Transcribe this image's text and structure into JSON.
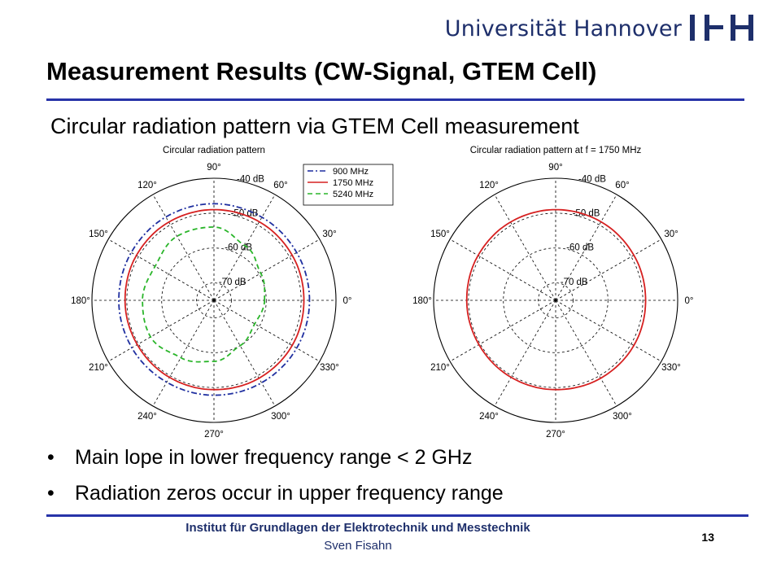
{
  "header": {
    "university": "Universität Hannover",
    "logo_icon": "ifh-logo-icon",
    "logo_color": "#1e2f6b"
  },
  "slide": {
    "title": "Measurement Results (CW-Signal, GTEM Cell)",
    "subtitle": "Circular radiation pattern via GTEM Cell measurement",
    "rule_color": "#2733a8",
    "bullets": [
      "Main lope in lower frequency range < 2 GHz",
      "Radiation zeros occur in upper frequency range"
    ]
  },
  "footer": {
    "institute": "Institut für Grundlagen der Elektrotechnik und Messtechnik",
    "author": "Sven Fisahn",
    "page": "13"
  },
  "chart_data": [
    {
      "type": "polar-line",
      "title": "Circular radiation pattern",
      "angle_labels": [
        "0°",
        "30°",
        "60°",
        "90°",
        "120°",
        "150°",
        "180°",
        "210°",
        "240°",
        "270°",
        "300°",
        "330°"
      ],
      "radial_labels": [
        "-70 dB",
        "-60 dB",
        "-50 dB",
        "-40 dB"
      ],
      "radial_range": [
        -75,
        -40
      ],
      "legend_position": "top-right",
      "series": [
        {
          "name": "900 MHz",
          "color": "#1f2fa0",
          "style": "dashdot",
          "values": [
            -47.6,
            -47.6,
            -47.5,
            -47.3,
            -47.4,
            -47.6,
            -47.7,
            -47.8,
            -47.9,
            -47.8,
            -47.7,
            -47.6,
            -47.6
          ]
        },
        {
          "name": "1750 MHz",
          "color": "#d62020",
          "style": "solid",
          "values": [
            -49.2,
            -49.1,
            -49.0,
            -49.0,
            -49.1,
            -49.3,
            -49.5,
            -49.6,
            -49.5,
            -49.4,
            -49.2,
            -49.1,
            -49.2
          ]
        },
        {
          "name": "5240 MHz",
          "color": "#2ab52a",
          "style": "dashed",
          "values": [
            -60.5,
            -59.5,
            -57.0,
            -54.0,
            -53.8,
            -55.5,
            -54.5,
            -54.0,
            -56.0,
            -57.5,
            -60.0,
            -61.5,
            -60.5
          ]
        }
      ]
    },
    {
      "type": "polar-line",
      "title": "Circular radiation pattern at f = 1750 MHz",
      "angle_labels": [
        "0°",
        "30°",
        "60°",
        "90°",
        "120°",
        "150°",
        "180°",
        "210°",
        "240°",
        "270°",
        "300°",
        "330°"
      ],
      "radial_labels": [
        "-70 dB",
        "-60 dB",
        "-50 dB",
        "-40 dB"
      ],
      "radial_range": [
        -75,
        -40
      ],
      "series": [
        {
          "color": "#d62020",
          "style": "solid",
          "values": [
            -49.2,
            -49.1,
            -49.0,
            -49.0,
            -49.1,
            -49.3,
            -49.5,
            -49.6,
            -49.5,
            -49.4,
            -49.2,
            -49.1,
            -49.2
          ]
        }
      ]
    }
  ]
}
